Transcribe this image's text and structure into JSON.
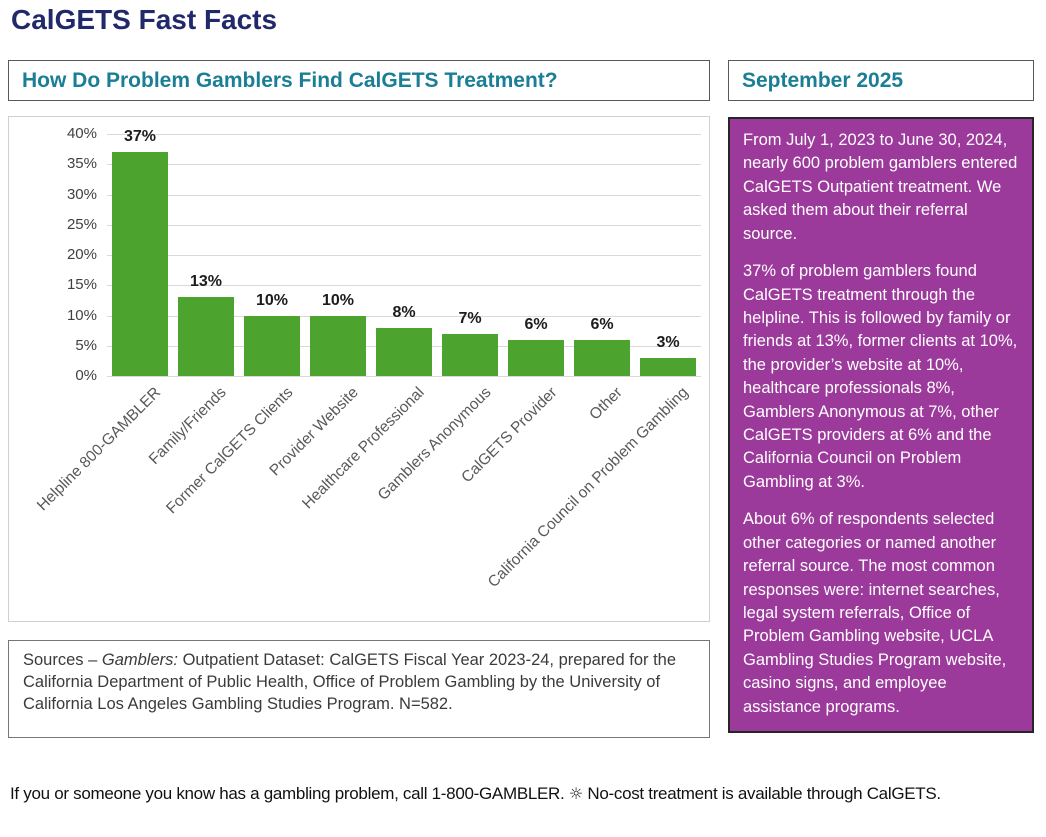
{
  "page": {
    "title": "CalGETS Fast Facts",
    "footer": {
      "part1": "If you or someone you know has a gambling problem, call 1-800-GAMBLER.",
      "icon": "☼",
      "part2": "No-cost treatment is available through CalGETS."
    }
  },
  "left_panel": {
    "header": "How Do Problem Gamblers Find CalGETS Treatment?",
    "sources": {
      "prefix": "Sources – ",
      "italic": "Gamblers:",
      "rest": " Outpatient Dataset: CalGETS Fiscal Year 2023-24, prepared for the California Department of Public Health, Office of Problem Gambling by the University of California Los Angeles Gambling Studies Program. N=582."
    }
  },
  "right_panel": {
    "date": "September 2025",
    "paragraphs": [
      "From July 1, 2023 to June 30, 2024, nearly 600 problem gamblers entered CalGETS Outpatient treatment. We asked them about their referral source.",
      "37% of problem gamblers found CalGETS treatment through the helpline. This is followed by family or friends at 13%, former clients at 10%, the provider’s website at 10%, healthcare professionals 8%, Gamblers Anonymous at 7%, other CalGETS providers at 6% and the California Council on Problem Gambling at 3%.",
      "About 6% of respondents selected other categories or named another referral source. The most common responses were: internet searches, legal system referrals, Office of Problem Gambling website, UCLA Gambling Studies Program website, casino signs, and employee assistance programs."
    ]
  },
  "chart_data": {
    "type": "bar",
    "title": "How Do Problem Gamblers Find CalGETS Treatment?",
    "categories": [
      "Helpline 800-GAMBLER",
      "Family/Friends",
      "Former CalGETS Clients",
      "Provider Website",
      "Healthcare Professional",
      "Gamblers Anonymous",
      "CalGETS Provider",
      "Other",
      "California Council on Problem Gambling"
    ],
    "values": [
      37,
      13,
      10,
      10,
      8,
      7,
      6,
      6,
      3
    ],
    "value_labels": [
      "37%",
      "13%",
      "10%",
      "10%",
      "8%",
      "7%",
      "6%",
      "6%",
      "3%"
    ],
    "yticks": [
      "40%",
      "35%",
      "30%",
      "25%",
      "20%",
      "15%",
      "10%",
      "5%",
      "0%"
    ],
    "ytick_values": [
      40,
      35,
      30,
      25,
      20,
      15,
      10,
      5,
      0
    ],
    "xlabel": "",
    "ylabel": "",
    "ylim": [
      0,
      40
    ],
    "grid": true,
    "legend": false,
    "bar_color": "#4ca32d"
  },
  "colors": {
    "title_navy": "#21296b",
    "teal": "#1a7e96",
    "bar_green": "#4ca32d",
    "purple": "#9c3a9c",
    "gridline": "#d9d9d9"
  }
}
